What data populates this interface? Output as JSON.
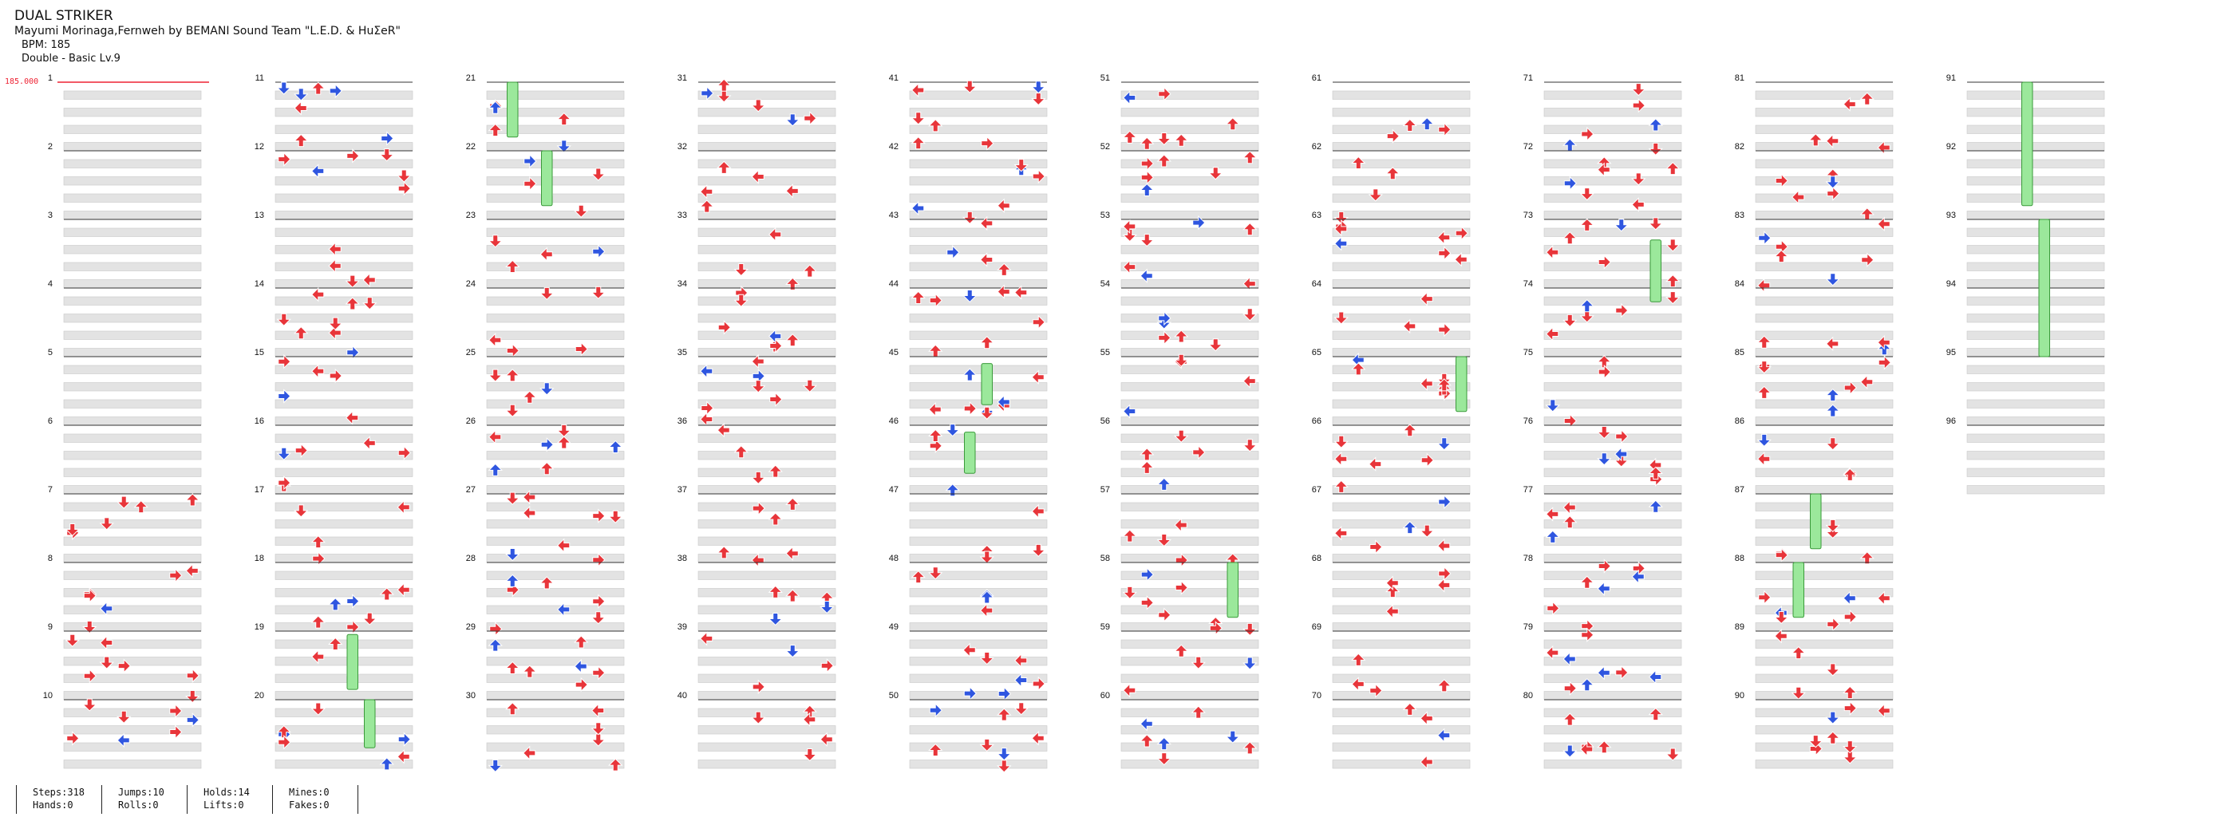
{
  "song": {
    "title": "DUAL STRIKER",
    "artist": "Mayumi Morinaga,Fernweh by BEMANI Sound Team \"L.E.D. & HuΣeR\"",
    "bpm_label": "BPM: 185",
    "difficulty": "Double - Basic Lv.9"
  },
  "bpm_marker": "185.000",
  "stats": {
    "steps": "Steps:318",
    "hands": "Hands:0",
    "jumps": "Jumps:10",
    "rolls": "Rolls:0",
    "holds": "Holds:14",
    "lifts": "Lifts:0",
    "mines": "Mines:0",
    "fakes": "Fakes:0"
  },
  "measure_count": 96,
  "colors": {
    "quarter": "#e8353a",
    "eighth": "#2f56e0",
    "hold": "#9be89b",
    "hold_border": "#3a9a3a",
    "band": "#e3e3e3"
  },
  "icons": {
    "note": "arrow-icon",
    "hold": "hold-bar-icon"
  }
}
